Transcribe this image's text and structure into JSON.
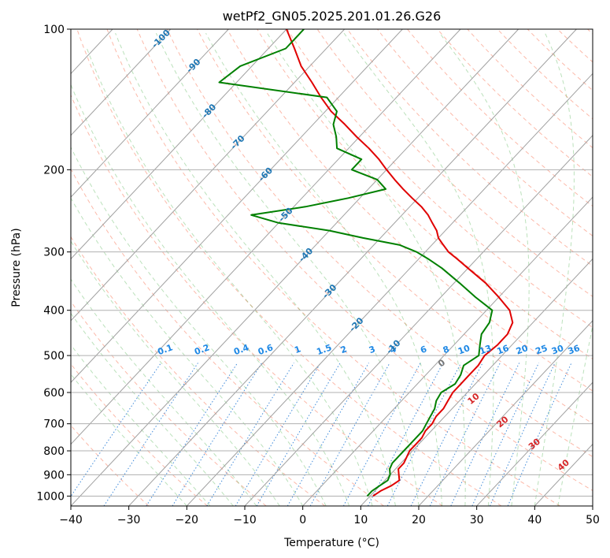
{
  "chart_data": {
    "type": "line",
    "subtype": "skew-T log-P diagram",
    "title": "wetPf2_GN05.2025.201.01.26.G26",
    "xlabel": "Temperature (°C)",
    "ylabel": "Pressure (hPa)",
    "xlim": [
      -40,
      50
    ],
    "ylim": [
      1050,
      100
    ],
    "yscale": "log",
    "grid": true,
    "x_ticks": [
      "−40",
      "−30",
      "−20",
      "−10",
      "0",
      "10",
      "20",
      "30",
      "40",
      "50"
    ],
    "y_ticks": [
      "100",
      "200",
      "300",
      "400",
      "500",
      "600",
      "700",
      "800",
      "900",
      "1000"
    ],
    "y_tick_values": [
      100,
      200,
      300,
      400,
      500,
      600,
      700,
      800,
      900,
      1000
    ],
    "isotherm_labels": [
      "-100",
      "-90",
      "-80",
      "-70",
      "-60",
      "-50",
      "-40",
      "-30",
      "-20",
      "-10"
    ],
    "isotherm_label_values": [
      -100,
      -90,
      -80,
      -70,
      -60,
      -50,
      -40,
      -30,
      -20,
      -10
    ],
    "mixing_ratio_labels": [
      "0.1",
      "0.2",
      "0.4",
      "0.6",
      "1",
      "1.5",
      "2",
      "3",
      "4",
      "6",
      "8",
      "10",
      "13",
      "16",
      "20",
      "25",
      "30",
      "36"
    ],
    "mixing_ratio_values": [
      0.1,
      0.2,
      0.4,
      0.6,
      1,
      1.5,
      2,
      3,
      4,
      6,
      8,
      10,
      13,
      16,
      20,
      25,
      30,
      36
    ],
    "moist_adiabat_labels": [
      "0",
      "10",
      "20",
      "30",
      "40"
    ],
    "series": [
      {
        "color": "#e00000",
        "pressure": [
          1000,
          975,
          950,
          925,
          900,
          875,
          850,
          825,
          800,
          775,
          750,
          725,
          700,
          675,
          650,
          625,
          600,
          575,
          550,
          525,
          500,
          475,
          450,
          425,
          400,
          375,
          350,
          325,
          310,
          300,
          290,
          280,
          270,
          260,
          250,
          240,
          230,
          220,
          210,
          200,
          190,
          180,
          170,
          160,
          150,
          140,
          130,
          120,
          110,
          100
        ],
        "temperature": [
          10.5,
          11.0,
          12.0,
          12.5,
          11.5,
          10.5,
          10.5,
          10.0,
          9.5,
          9.5,
          9.5,
          9.0,
          9.0,
          8.5,
          8.5,
          8.0,
          7.5,
          7.5,
          7.5,
          7.5,
          7.0,
          7.5,
          7.5,
          6.5,
          4.0,
          0.0,
          -4.5,
          -10.0,
          -13.5,
          -16.0,
          -18.0,
          -20.0,
          -21.5,
          -23.5,
          -25.5,
          -28.0,
          -31.0,
          -34.0,
          -37.0,
          -40.0,
          -43.0,
          -46.5,
          -50.5,
          -54.5,
          -59.0,
          -63.0,
          -67.0,
          -71.5,
          -75.5,
          -80.0
        ]
      },
      {
        "color": "#008000",
        "pressure": [
          1000,
          975,
          950,
          925,
          900,
          875,
          850,
          825,
          800,
          775,
          750,
          725,
          700,
          675,
          650,
          625,
          600,
          575,
          550,
          525,
          500,
          475,
          450,
          425,
          400,
          375,
          350,
          325,
          310,
          300,
          290,
          280,
          270,
          260,
          250,
          240,
          230,
          220,
          210,
          200,
          190,
          180,
          170,
          160,
          150,
          140,
          130,
          120,
          110,
          100
        ],
        "temperature": [
          9.5,
          9.5,
          10.0,
          10.5,
          10.0,
          9.0,
          8.5,
          8.5,
          8.5,
          8.5,
          8.5,
          8.5,
          8.0,
          7.5,
          7.0,
          6.0,
          5.5,
          6.5,
          6.0,
          5.0,
          6.0,
          4.5,
          3.0,
          2.5,
          1.0,
          -4.0,
          -9.0,
          -14.5,
          -18.5,
          -21.5,
          -25.5,
          -33.0,
          -40.0,
          -50.0,
          -56.0,
          -48.0,
          -42.0,
          -37.0,
          -40.0,
          -46.0,
          -46.0,
          -52.0,
          -54.0,
          -56.5,
          -58.0,
          -62.0,
          -83.0,
          -82.0,
          -77.0,
          -77.0
        ]
      }
    ]
  }
}
